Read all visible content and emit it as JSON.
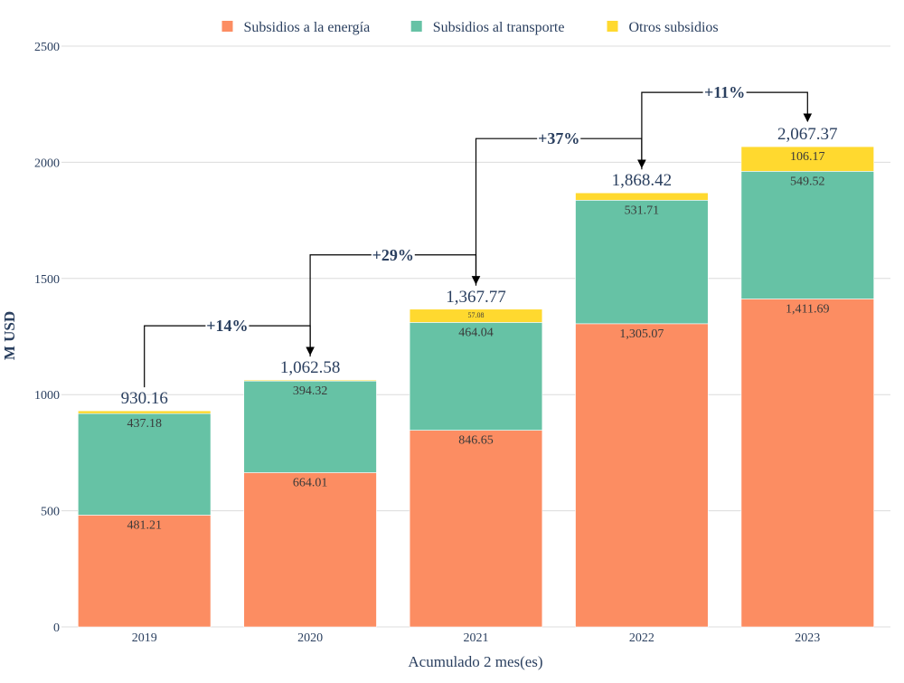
{
  "chart_data": {
    "type": "bar",
    "stacked": true,
    "categories": [
      "2019",
      "2020",
      "2021",
      "2022",
      "2023"
    ],
    "series": [
      {
        "name": "Subsidios a la energía",
        "color": "#fc8d62",
        "values": [
          481.21,
          664.01,
          846.65,
          1305.07,
          1411.69
        ],
        "labels": [
          "481.21",
          "664.01",
          "846.65",
          "1,305.07",
          "1,411.69"
        ]
      },
      {
        "name": "Subsidios al transporte",
        "color": "#66c2a5",
        "values": [
          437.18,
          394.32,
          464.04,
          531.71,
          549.52
        ],
        "labels": [
          "437.18",
          "394.32",
          "464.04",
          "531.71",
          "549.52"
        ]
      },
      {
        "name": "Otros subsidios",
        "color": "#ffd92f",
        "values": [
          11.77,
          4.25,
          57.08,
          31.64,
          106.17
        ],
        "labels": [
          "",
          "",
          "57.08",
          "",
          "106.17"
        ]
      }
    ],
    "totals": [
      "930.16",
      "1,062.58",
      "1,367.77",
      "1,868.42",
      "2,067.37"
    ],
    "total_values": [
      930.16,
      1062.58,
      1367.77,
      1868.42,
      2067.37
    ],
    "growth": [
      "+14%",
      "+29%",
      "+37%",
      "+11%"
    ],
    "ylabel": "M USD",
    "xlabel": "Acumulado 2 mes(es)",
    "ylim": [
      0,
      2500
    ],
    "yticks": [
      0,
      500,
      1000,
      1500,
      2000,
      2500
    ],
    "grid": true,
    "legend_position": "top-center"
  }
}
